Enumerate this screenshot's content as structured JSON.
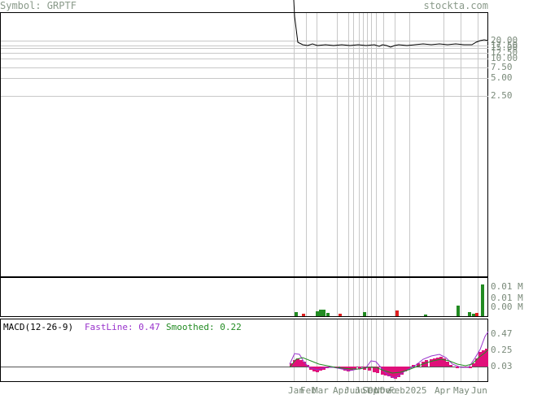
{
  "header": {
    "symbol_label": "Symbol: GRPTF",
    "site": "stockta.com"
  },
  "colors": {
    "price_line": "#000000",
    "grid": "#c8c8c8",
    "axis_text": "#7a8a7a",
    "vol_up": "#228b22",
    "vol_down": "#e02020",
    "macd_fast": "#9933cc",
    "macd_smooth": "#228b22",
    "macd_hist": "#e0107a"
  },
  "chart_data": [
    {
      "type": "line",
      "panel": "price",
      "y_ticks": [
        "20.00",
        "17.50",
        "15.00",
        "12.50",
        "10.00",
        "7.50",
        "5.00",
        "2.50"
      ],
      "series": [
        {
          "x": [
            0,
            2,
            4,
            6,
            8,
            10,
            12,
            14,
            16,
            18,
            20,
            22,
            24,
            26,
            28,
            30,
            32,
            34,
            36,
            38,
            40,
            42,
            44,
            46,
            48,
            50,
            52,
            54,
            56,
            58,
            60,
            62,
            64,
            66,
            68,
            70,
            72,
            74,
            76,
            78,
            80,
            82,
            84,
            86,
            88,
            90,
            92,
            94,
            96,
            98,
            100,
            102,
            104,
            106,
            108,
            110,
            112,
            114,
            116,
            118,
            120,
            122,
            124,
            126,
            128,
            130,
            132,
            134,
            136,
            138,
            140,
            142,
            144,
            146,
            148,
            150,
            152,
            154,
            156,
            158,
            160,
            162,
            164,
            166,
            168,
            170,
            172,
            174,
            176,
            178,
            180,
            182,
            184,
            186,
            188,
            190,
            192,
            194,
            196,
            198,
            200,
            202,
            204,
            206,
            208,
            210,
            212,
            214,
            216,
            218,
            220,
            222,
            224,
            226,
            228,
            230,
            232,
            234,
            236,
            238,
            240
          ],
          "values": [
            null,
            null,
            null,
            null,
            null,
            null,
            null,
            null,
            null,
            null,
            null,
            null,
            null,
            null,
            null,
            null,
            null,
            null,
            null,
            null,
            null,
            null,
            null,
            null,
            null,
            null,
            null,
            null,
            null,
            null,
            null,
            null,
            null,
            null,
            null,
            null,
            null,
            null,
            null,
            null,
            null,
            null,
            null,
            null,
            null,
            null,
            null,
            null,
            null,
            null,
            null,
            null,
            null,
            null,
            null,
            null,
            null,
            null,
            null,
            null,
            null,
            null,
            null,
            null,
            null,
            null,
            null,
            null,
            null,
            null,
            null,
            null,
            null,
            null,
            null,
            null,
            null,
            null,
            null,
            null,
            null,
            null,
            null,
            null,
            null,
            null,
            null,
            null,
            null,
            null,
            null,
            null,
            null,
            null,
            null,
            null,
            null,
            null,
            null,
            null,
            null,
            null,
            null,
            null,
            null,
            null,
            null,
            null,
            null,
            null,
            null,
            null,
            null,
            null,
            null,
            null,
            null,
            null,
            null,
            null,
            null
          ]
        }
      ]
    },
    {
      "type": "bar",
      "panel": "volume",
      "y_ticks": [
        "0.01 M",
        "0.01 M",
        "0.00 M"
      ]
    },
    {
      "type": "line",
      "panel": "macd",
      "legend": {
        "title": "MACD(12-26-9)",
        "fast_label": "FastLine: 0.47",
        "smooth_label": "Smoothed: 0.22"
      },
      "y_ticks": [
        "0.47",
        "0.25",
        "0.03"
      ]
    }
  ],
  "x_axis": {
    "labels": [
      "Jan",
      "Feb",
      "Mar",
      "Apr",
      "Jun",
      "Jul",
      "Sep",
      "Oct",
      "Nov",
      "Dec",
      "Feb",
      "2025",
      "Apr",
      "May",
      "Jun"
    ]
  }
}
